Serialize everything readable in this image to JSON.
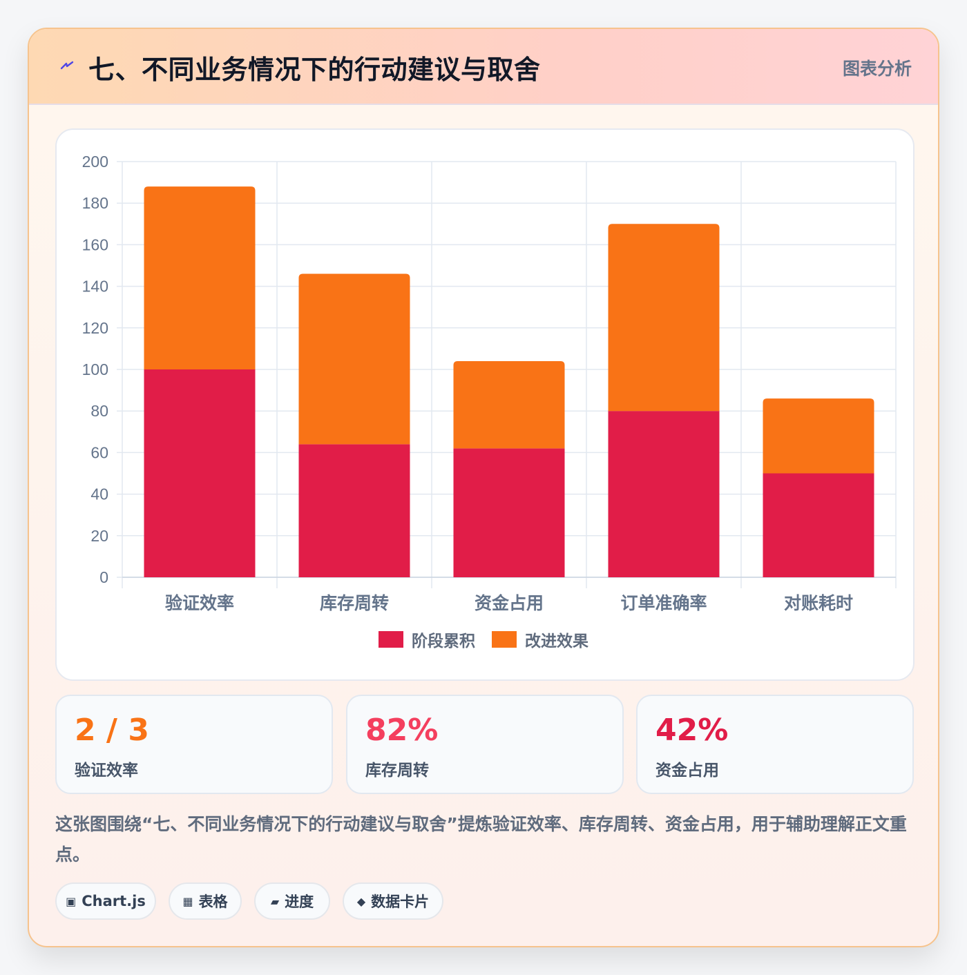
{
  "header": {
    "title": "七、不同业务情况下的行动建议与取舍",
    "badge": "图表分析",
    "icon": "lightning-bolt-icon"
  },
  "chart_data": {
    "type": "bar",
    "stacked": true,
    "categories": [
      "验证效率",
      "库存周转",
      "资金占用",
      "订单准确率",
      "对账耗时"
    ],
    "series": [
      {
        "name": "阶段累积",
        "color": "#e11d48",
        "values": [
          100,
          64,
          62,
          80,
          50
        ]
      },
      {
        "name": "改进效果",
        "color": "#f97316",
        "values": [
          88,
          82,
          42,
          90,
          36
        ]
      }
    ],
    "ylim": [
      0,
      200
    ],
    "yticks": [
      0,
      20,
      40,
      60,
      80,
      100,
      120,
      140,
      160,
      180,
      200
    ],
    "grid": true,
    "legend": "bottom"
  },
  "stats": [
    {
      "value": "2 / 3",
      "label": "验证效率",
      "color": "#f97316"
    },
    {
      "value": "82%",
      "label": "库存周转",
      "color": "#f43f5e"
    },
    {
      "value": "42%",
      "label": "资金占用",
      "color": "#e11d48"
    }
  ],
  "description": "这张图围绕“七、不同业务情况下的行动建议与取舍”提炼验证效率、库存周转、资金占用，用于辅助理解正文重点。",
  "tags": [
    {
      "icon": "▣",
      "label": "Chart.js"
    },
    {
      "icon": "▦",
      "label": "表格"
    },
    {
      "icon": "▰",
      "label": "进度"
    },
    {
      "icon": "◆",
      "label": "数据卡片"
    }
  ]
}
